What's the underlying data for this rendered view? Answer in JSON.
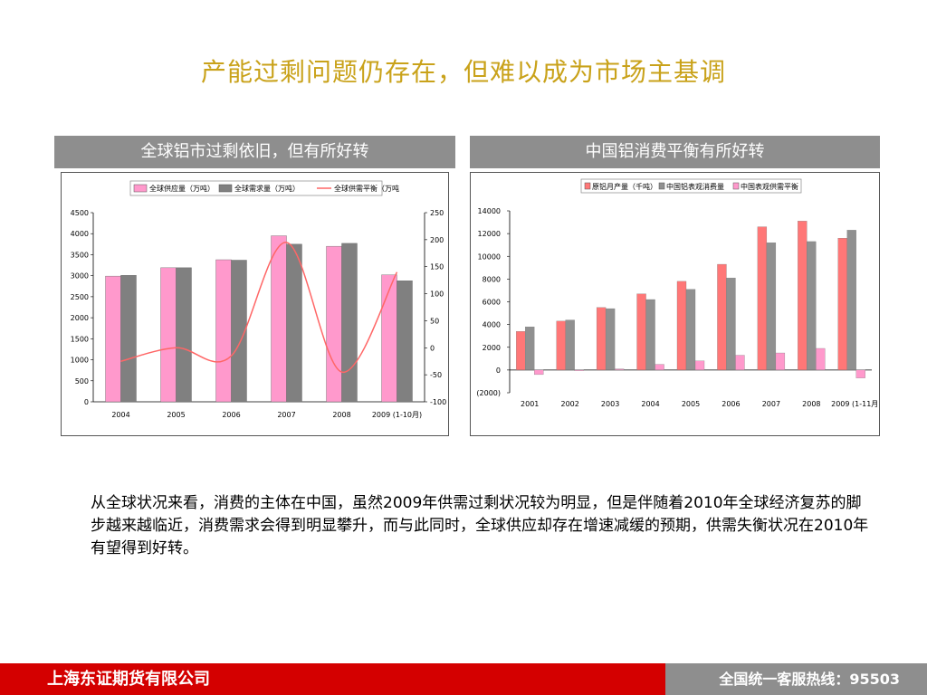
{
  "slide": {
    "title": "产能过剩问题仍存在，但难以成为市场主基调",
    "body_text": "从全球状况来看，消费的主体在中国，虽然2009年供需过剩状况较为明显，但是伴随着2010年全球经济复苏的脚步越来越临近，消费需求会得到明显攀升，而与此同时，全球供应却存在增速减缓的预期，供需失衡状况在2010年有望得到好转。"
  },
  "panels": {
    "left_header": "全球铝市过剩依旧，但有所好转",
    "right_header": "中国铝消费平衡有所好转"
  },
  "footer": {
    "company": "上海东证期货有限公司",
    "hotline": "全国统一客服热线：95503",
    "brand_color": "#d40000"
  },
  "chart_data": [
    {
      "type": "bar",
      "categories": [
        "2004",
        "2005",
        "2006",
        "2007",
        "2008",
        "2009 (1-10月)"
      ],
      "series": [
        {
          "name": "全球供应量（万吨）",
          "kind": "bar",
          "axis": "left",
          "color": "#ff99cc",
          "values": [
            2990,
            3190,
            3380,
            3950,
            3700,
            3020
          ]
        },
        {
          "name": "全球需求量（万吨）",
          "kind": "bar",
          "axis": "left",
          "color": "#808080",
          "values": [
            3010,
            3190,
            3370,
            3750,
            3770,
            2880
          ]
        },
        {
          "name": "全球供需平衡（万吨",
          "kind": "line",
          "axis": "right",
          "color": "#ff6666",
          "values": [
            -25,
            0,
            -15,
            195,
            -45,
            140
          ]
        }
      ],
      "ylim_left": [
        0,
        4500
      ],
      "yticks_left": [
        "4500",
        "4000",
        "3500",
        "3000",
        "2500",
        "2000",
        "1500",
        "1000",
        "500",
        "0"
      ],
      "ylim_right": [
        -100,
        250
      ],
      "yticks_right": [
        "250",
        "200",
        "150",
        "100",
        "50",
        "0",
        "-50",
        "-100"
      ],
      "legend_position": "top",
      "grid": false
    },
    {
      "type": "bar",
      "categories": [
        "2001",
        "2002",
        "2003",
        "2004",
        "2005",
        "2006",
        "2007",
        "2008",
        "2009 (1-11月)"
      ],
      "series": [
        {
          "name": "原铝月产量（千吨）",
          "color": "#ff7777",
          "values": [
            3400,
            4300,
            5500,
            6700,
            7800,
            9300,
            12600,
            13100,
            11600
          ]
        },
        {
          "name": "中国铝表观消费量",
          "color": "#909090",
          "values": [
            3800,
            4400,
            5400,
            6200,
            7100,
            8100,
            11200,
            11300,
            12300
          ]
        },
        {
          "name": "中国表观供需平衡",
          "color": "#ff99cc",
          "values": [
            -400,
            -50,
            100,
            500,
            800,
            1300,
            1500,
            1900,
            -700
          ]
        }
      ],
      "ylim": [
        -2000,
        14000
      ],
      "yticks": [
        "14000",
        "12000",
        "10000",
        "8000",
        "6000",
        "4000",
        "2000",
        "0",
        "(2000)"
      ],
      "legend_position": "top",
      "grid": false
    }
  ]
}
